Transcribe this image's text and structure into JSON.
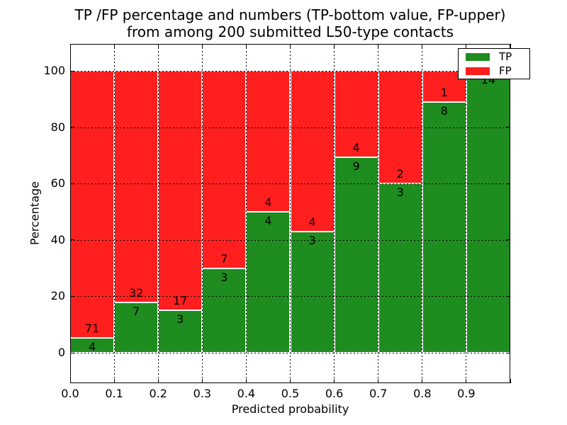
{
  "title": {
    "line1": "TP /FP percentage and numbers (TP-bottom value, FP-upper)",
    "line2": "from among 200 submitted L50-type contacts"
  },
  "axes": {
    "xlabel": "Predicted probability",
    "ylabel": "Percentage",
    "xtick_labels": [
      "0.0",
      "0.1",
      "0.2",
      "0.3",
      "0.4",
      "0.5",
      "0.6",
      "0.7",
      "0.8",
      "0.9"
    ],
    "ytick_labels": [
      "0",
      "20",
      "40",
      "60",
      "80",
      "100"
    ]
  },
  "legend": {
    "items": [
      {
        "label": "TP",
        "color": "#1e8c1e"
      },
      {
        "label": "FP",
        "color": "#ff1f1f"
      }
    ]
  },
  "colors": {
    "tp": "#1e8c1e",
    "fp": "#ff1f1f",
    "bar_edge": "#ffffff",
    "grid": "#000000",
    "frame": "#000000",
    "background": "#ffffff"
  },
  "chart_data": {
    "type": "bar",
    "stacked": true,
    "normalized": "each bin stacked to 100%",
    "title": "TP /FP percentage and numbers (TP-bottom value, FP-upper) from among 200 submitted L50-type contacts",
    "xlabel": "Predicted probability",
    "ylabel": "Percentage",
    "xlim": [
      0.0,
      1.0
    ],
    "ylim": [
      -10,
      110
    ],
    "grid": true,
    "legend_position": "upper right",
    "bin_edges": [
      0.0,
      0.1,
      0.2,
      0.3,
      0.4,
      0.5,
      0.6,
      0.7,
      0.8,
      0.9,
      1.0
    ],
    "series": [
      {
        "name": "TP",
        "color": "#1e8c1e",
        "counts": [
          4,
          7,
          3,
          3,
          4,
          3,
          9,
          3,
          8,
          14
        ]
      },
      {
        "name": "FP",
        "color": "#ff1f1f",
        "counts": [
          71,
          32,
          17,
          7,
          4,
          4,
          4,
          2,
          1,
          0
        ]
      }
    ],
    "tp_percentages": [
      5.33,
      17.95,
      15.0,
      30.0,
      50.0,
      42.86,
      69.23,
      60.0,
      88.89,
      100.0
    ],
    "fp_percentages": [
      94.67,
      82.05,
      85.0,
      70.0,
      50.0,
      57.14,
      30.77,
      40.0,
      11.11,
      0.0
    ],
    "total_contacts": 200
  }
}
